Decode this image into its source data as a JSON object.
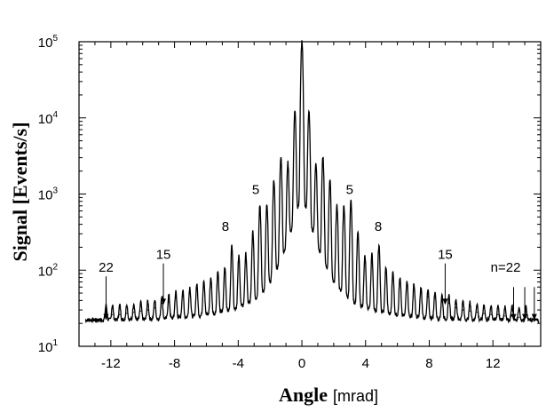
{
  "chart_data": {
    "type": "line",
    "title": "",
    "xlabel_bold": "Angle",
    "xlabel_unit": "[mrad]",
    "ylabel": "Signal [Events/s]",
    "xlim": [
      -14,
      15
    ],
    "ylim": [
      10,
      100000
    ],
    "yscale": "log",
    "grid": false,
    "x_ticks": [
      {
        "value": -12,
        "label": "-12"
      },
      {
        "value": -8,
        "label": "-8"
      },
      {
        "value": -4,
        "label": "-4"
      },
      {
        "value": 0,
        "label": "0"
      },
      {
        "value": 4,
        "label": "4"
      },
      {
        "value": 8,
        "label": "8"
      },
      {
        "value": 12,
        "label": "12"
      }
    ],
    "y_ticks": [
      {
        "value": 10,
        "base": "10",
        "exp": "1"
      },
      {
        "value": 100,
        "base": "10",
        "exp": "2"
      },
      {
        "value": 1000,
        "base": "10",
        "exp": "3"
      },
      {
        "value": 10000,
        "base": "10",
        "exp": "4"
      },
      {
        "value": 100000,
        "base": "10",
        "exp": "5"
      }
    ],
    "series": [
      {
        "peak_spacing": 0.44,
        "background_level": 22,
        "peaks": [
          {
            "x": -12.3,
            "y": 26
          },
          {
            "x": -11.9,
            "y": 26
          },
          {
            "x": -11.44,
            "y": 26
          },
          {
            "x": -11.0,
            "y": 27
          },
          {
            "x": -10.56,
            "y": 28
          },
          {
            "x": -10.12,
            "y": 29
          },
          {
            "x": -9.68,
            "y": 30
          },
          {
            "x": -9.24,
            "y": 32
          },
          {
            "x": -8.8,
            "y": 37
          },
          {
            "x": -8.36,
            "y": 38
          },
          {
            "x": -7.92,
            "y": 43
          },
          {
            "x": -7.48,
            "y": 45
          },
          {
            "x": -7.04,
            "y": 50
          },
          {
            "x": -6.6,
            "y": 56
          },
          {
            "x": -6.16,
            "y": 65
          },
          {
            "x": -5.72,
            "y": 70
          },
          {
            "x": -5.28,
            "y": 85
          },
          {
            "x": -4.84,
            "y": 100
          },
          {
            "x": -4.4,
            "y": 200
          },
          {
            "x": -3.96,
            "y": 140
          },
          {
            "x": -3.52,
            "y": 150
          },
          {
            "x": -3.08,
            "y": 300
          },
          {
            "x": -2.64,
            "y": 700
          },
          {
            "x": -2.2,
            "y": 700
          },
          {
            "x": -1.76,
            "y": 1500
          },
          {
            "x": -1.32,
            "y": 3000
          },
          {
            "x": -0.88,
            "y": 2500
          },
          {
            "x": -0.44,
            "y": 12000
          },
          {
            "x": 0.0,
            "y": 100000
          },
          {
            "x": 0.44,
            "y": 12000
          },
          {
            "x": 0.88,
            "y": 2500
          },
          {
            "x": 1.32,
            "y": 3000
          },
          {
            "x": 1.76,
            "y": 1500
          },
          {
            "x": 2.2,
            "y": 700
          },
          {
            "x": 2.64,
            "y": 700
          },
          {
            "x": 3.08,
            "y": 800
          },
          {
            "x": 3.52,
            "y": 300
          },
          {
            "x": 3.96,
            "y": 140
          },
          {
            "x": 4.4,
            "y": 150
          },
          {
            "x": 4.84,
            "y": 200
          },
          {
            "x": 5.28,
            "y": 100
          },
          {
            "x": 5.72,
            "y": 85
          },
          {
            "x": 6.16,
            "y": 70
          },
          {
            "x": 6.6,
            "y": 65
          },
          {
            "x": 7.04,
            "y": 56
          },
          {
            "x": 7.48,
            "y": 50
          },
          {
            "x": 7.92,
            "y": 45
          },
          {
            "x": 8.36,
            "y": 43
          },
          {
            "x": 8.8,
            "y": 38
          },
          {
            "x": 9.24,
            "y": 37
          },
          {
            "x": 9.68,
            "y": 32
          },
          {
            "x": 10.12,
            "y": 30
          },
          {
            "x": 10.56,
            "y": 29
          },
          {
            "x": 11.0,
            "y": 28
          },
          {
            "x": 11.44,
            "y": 27
          },
          {
            "x": 11.88,
            "y": 26
          },
          {
            "x": 12.32,
            "y": 26
          },
          {
            "x": 12.76,
            "y": 25
          },
          {
            "x": 13.2,
            "y": 25
          },
          {
            "x": 13.64,
            "y": 24
          },
          {
            "x": 14.08,
            "y": 24
          }
        ]
      }
    ],
    "annotations": [
      {
        "text": "22",
        "x": -12.3,
        "y": 95,
        "arrow_to_y": 22
      },
      {
        "text": "15",
        "x": -8.7,
        "y": 140,
        "arrow_to_y": 35
      },
      {
        "text": "8",
        "x": -4.8,
        "y": 330
      },
      {
        "text": "5",
        "x": -2.9,
        "y": 1000
      },
      {
        "text": "5",
        "x": 3.0,
        "y": 1000
      },
      {
        "text": "8",
        "x": 4.8,
        "y": 330
      },
      {
        "text": "15",
        "x": 9.0,
        "y": 140,
        "arrow_to_y": 35
      },
      {
        "text": "n=22",
        "x": 12.8,
        "y": 95
      },
      {
        "arrow_x": 13.3,
        "arrow_from_y": 60,
        "arrow_to_y": 22
      },
      {
        "arrow_x": 14.0,
        "arrow_from_y": 60,
        "arrow_to_y": 22
      },
      {
        "arrow_x": 14.6,
        "arrow_from_y": 60,
        "arrow_to_y": 22
      }
    ]
  }
}
